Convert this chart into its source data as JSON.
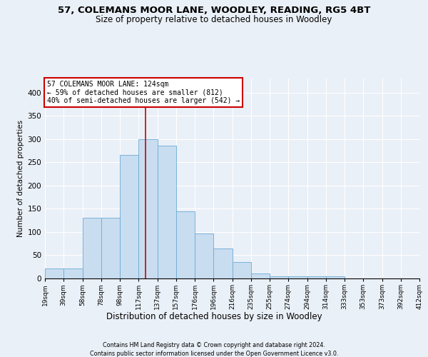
{
  "title1": "57, COLEMANS MOOR LANE, WOODLEY, READING, RG5 4BT",
  "title2": "Size of property relative to detached houses in Woodley",
  "xlabel": "Distribution of detached houses by size in Woodley",
  "ylabel": "Number of detached properties",
  "footnote1": "Contains HM Land Registry data © Crown copyright and database right 2024.",
  "footnote2": "Contains public sector information licensed under the Open Government Licence v3.0.",
  "tick_labels": [
    "19sqm",
    "39sqm",
    "58sqm",
    "78sqm",
    "98sqm",
    "117sqm",
    "137sqm",
    "157sqm",
    "176sqm",
    "196sqm",
    "216sqm",
    "235sqm",
    "255sqm",
    "274sqm",
    "294sqm",
    "314sqm",
    "333sqm",
    "353sqm",
    "373sqm",
    "392sqm",
    "412sqm"
  ],
  "bar_heights": [
    22,
    22,
    130,
    130,
    265,
    300,
    285,
    145,
    97,
    65,
    36,
    10,
    5,
    4,
    4,
    4,
    0,
    0,
    0,
    0
  ],
  "bar_color": "#c9ddf0",
  "bar_edge_color": "#6aabd6",
  "vline_position": 5.37,
  "vline_color": "#cc0000",
  "annotation_line1": "57 COLEMANS MOOR LANE: 124sqm",
  "annotation_line2": "← 59% of detached houses are smaller (812)",
  "annotation_line3": "40% of semi-detached houses are larger (542) →",
  "annotation_box_facecolor": "#ffffff",
  "annotation_box_edgecolor": "#cc0000",
  "ylim": [
    0,
    430
  ],
  "yticks": [
    0,
    50,
    100,
    150,
    200,
    250,
    300,
    350,
    400
  ],
  "fig_bg": "#eaf0f7",
  "grid_color": "#ffffff",
  "title1_fontsize": 9.5,
  "title2_fontsize": 8.5,
  "ylabel_fontsize": 7.5,
  "xlabel_fontsize": 8.5,
  "tick_fontsize": 6.5,
  "annot_fontsize": 7,
  "footnote_fontsize": 5.8
}
